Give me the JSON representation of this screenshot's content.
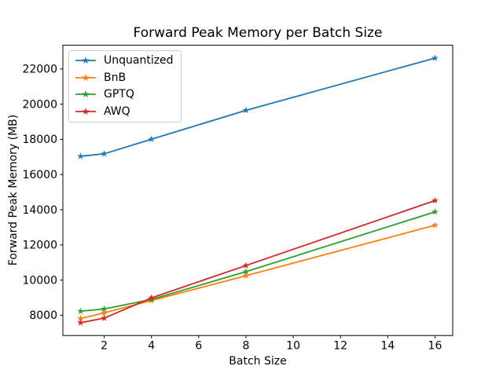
{
  "figure": {
    "background": "#ffffff",
    "spine_color": "#000000",
    "text_color": "#000000"
  },
  "chart_data": {
    "type": "line",
    "title": "Forward Peak Memory per Batch Size",
    "xlabel": "Batch Size",
    "ylabel": "Forward Peak Memory (MB)",
    "x": [
      1,
      2,
      4,
      8,
      16
    ],
    "series": [
      {
        "name": "Unquantized",
        "color": "#1f77b4",
        "marker": "star",
        "values": [
          17040,
          17180,
          18010,
          19650,
          22620
        ]
      },
      {
        "name": "BnB",
        "color": "#ff7f0e",
        "marker": "star",
        "values": [
          7820,
          8140,
          8840,
          10250,
          13120
        ]
      },
      {
        "name": "GPTQ",
        "color": "#2ca02c",
        "marker": "star",
        "values": [
          8230,
          8360,
          8900,
          10480,
          13880
        ]
      },
      {
        "name": "AWQ",
        "color": "#d62728",
        "marker": "star",
        "values": [
          7580,
          7840,
          8990,
          10830,
          14520
        ]
      }
    ],
    "xticks": [
      2,
      4,
      6,
      8,
      10,
      12,
      14,
      16
    ],
    "yticks": [
      8000,
      10000,
      12000,
      14000,
      16000,
      18000,
      20000,
      22000
    ],
    "xlim": [
      0.25,
      16.75
    ],
    "ylim": [
      6850,
      23350
    ],
    "grid": false,
    "legend_position": "upper left"
  }
}
